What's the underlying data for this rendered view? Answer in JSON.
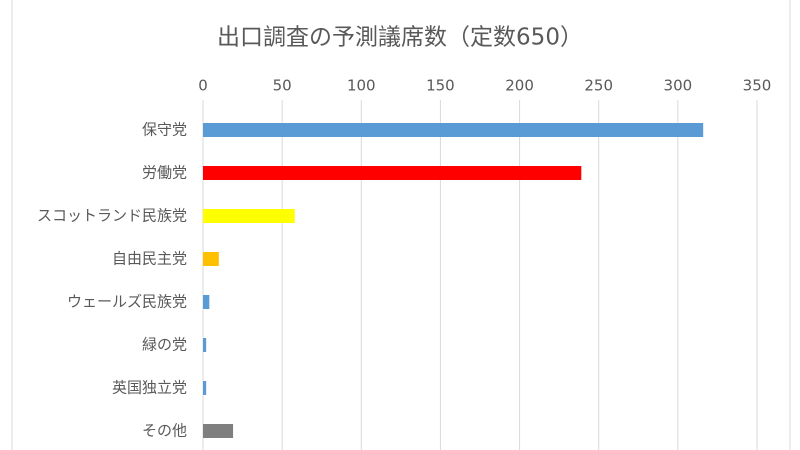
{
  "chart_data": {
    "type": "bar",
    "orientation": "horizontal",
    "title": "出口調査の予測議席数（定数650）",
    "categories": [
      "保守党",
      "労働党",
      "スコットランド民族党",
      "自由民主党",
      "ウェールズ民族党",
      "緑の党",
      "英国独立党",
      "その他"
    ],
    "values": [
      316,
      239,
      58,
      10,
      4,
      2,
      2,
      19
    ],
    "colors": [
      "#5b9bd5",
      "#ff0000",
      "#ffff00",
      "#ffc000",
      "#5b9bd5",
      "#5b9bd5",
      "#5b9bd5",
      "#7f7f7f"
    ],
    "xlim": [
      0,
      350
    ],
    "xticks": [
      0,
      50,
      100,
      150,
      200,
      250,
      300,
      350
    ],
    "grid": true
  }
}
